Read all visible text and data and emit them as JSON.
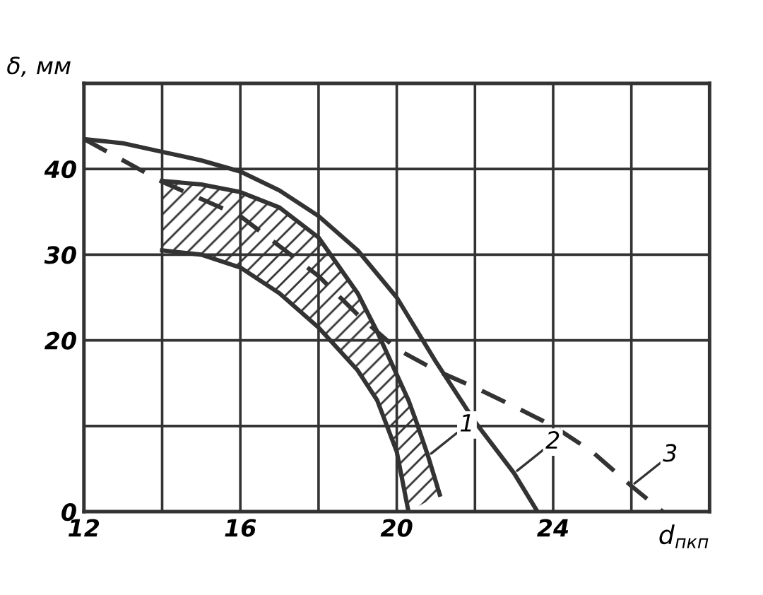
{
  "chart_data": {
    "type": "line",
    "xlabel": "d$_{пкп}$",
    "ylabel": "δ, мм",
    "xlim": [
      12,
      28
    ],
    "ylim": [
      0,
      50
    ],
    "xticks": [
      12,
      {
        "value": 14,
        "label": null
      },
      16,
      {
        "value": 18,
        "label": null
      },
      20,
      {
        "value": 22,
        "label": null
      },
      24,
      {
        "value": 26,
        "label": null
      },
      {
        "value": 28,
        "label": null
      }
    ],
    "yticks": [
      0,
      {
        "value": 10,
        "label": null
      },
      20,
      30,
      40,
      {
        "value": 50,
        "label": null
      }
    ],
    "grid": true,
    "legend": false,
    "series": [
      {
        "name": "1",
        "color": "#333333",
        "line_style": "solid",
        "x": [
          14,
          15,
          16,
          17,
          18,
          19,
          19.5,
          20,
          20.3,
          20.5,
          20.8,
          21.1
        ],
        "values": [
          38.6,
          38.2,
          37.3,
          35.5,
          32,
          25.5,
          21,
          16,
          13,
          10.5,
          6.5,
          2
        ]
      },
      {
        "color": "#333333",
        "line_style": "solid",
        "x": [
          14,
          15,
          16,
          17,
          18,
          19,
          19.5,
          20,
          20.3
        ],
        "values": [
          30.5,
          30,
          28.5,
          25.5,
          21.5,
          16.5,
          13,
          7,
          0
        ]
      },
      {
        "name": "2",
        "color": "#333333",
        "line_style": "solid",
        "x": [
          12,
          13,
          14,
          15,
          16,
          17,
          18,
          19,
          20,
          21,
          22,
          23,
          23.6
        ],
        "values": [
          43.5,
          43,
          42,
          41,
          39.7,
          37.5,
          34.5,
          30.5,
          25,
          17.5,
          10.5,
          4.5,
          0
        ]
      },
      {
        "name": "3",
        "color": "#333333",
        "line_style": "dashed",
        "x": [
          12,
          14,
          16,
          18,
          19,
          20,
          21,
          22,
          23,
          24,
          25,
          26,
          26.8
        ],
        "values": [
          43.5,
          38.5,
          34.5,
          27.5,
          23,
          19,
          16.5,
          14.5,
          12.3,
          10,
          7,
          3,
          0
        ]
      }
    ]
  }
}
